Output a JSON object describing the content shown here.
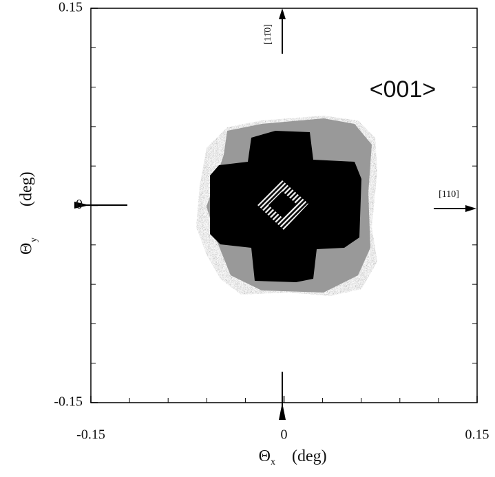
{
  "chart_data": {
    "type": "map",
    "xlim": [
      -0.15,
      0.15
    ],
    "ylim": [
      -0.15,
      0.15
    ],
    "xticks": [
      -0.15,
      0,
      0.15
    ],
    "yticks": [
      -0.15,
      0,
      0.15
    ],
    "minor_ticks": [
      -0.12,
      -0.09,
      -0.06,
      -0.03,
      0.03,
      0.06,
      0.09,
      0.12
    ],
    "xlabel": "Θ",
    "xlabel_sub": "x",
    "xlabel_unit": "(deg)",
    "ylabel": "Θ",
    "ylabel_sub": "y",
    "ylabel_unit": "(deg)",
    "annotations": {
      "zone": "<001>",
      "right_direction": "[110]",
      "up_direction": "[11̄0]"
    }
  }
}
